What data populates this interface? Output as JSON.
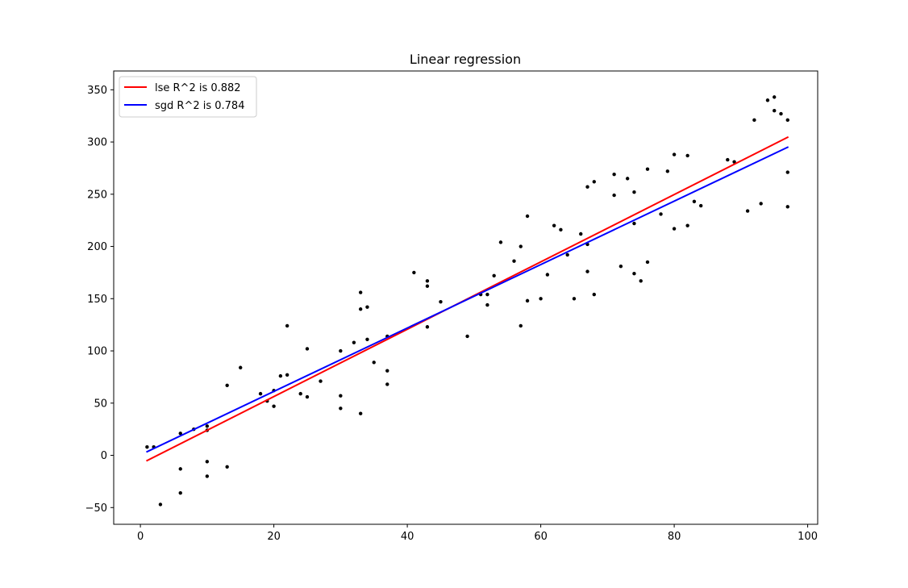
{
  "chart_data": {
    "type": "scatter",
    "title": "Linear regression",
    "xlabel": "",
    "ylabel": "",
    "xlim": [
      -4,
      101.5
    ],
    "ylim": [
      -66,
      368
    ],
    "xticks": [
      0,
      20,
      40,
      60,
      80,
      100
    ],
    "yticks": [
      -50,
      0,
      50,
      100,
      150,
      200,
      250,
      300,
      350
    ],
    "grid": false,
    "legend_position": "top-left",
    "points": {
      "name": "",
      "color": "#000000",
      "x": [
        1,
        2,
        3,
        6,
        6,
        6,
        8,
        10,
        10,
        10,
        10,
        13,
        13,
        15,
        18,
        19,
        20,
        20,
        21,
        22,
        22,
        24,
        25,
        25,
        27,
        30,
        30,
        30,
        32,
        33,
        33,
        33,
        34,
        34,
        35,
        37,
        37,
        37,
        41,
        43,
        43,
        43,
        45,
        49,
        51,
        52,
        52,
        53,
        54,
        56,
        57,
        57,
        58,
        58,
        60,
        61,
        62,
        63,
        64,
        65,
        66,
        67,
        67,
        67,
        68,
        68,
        71,
        71,
        72,
        73,
        74,
        74,
        74,
        75,
        76,
        76,
        78,
        79,
        80,
        80,
        82,
        82,
        83,
        84,
        88,
        89,
        91,
        92,
        93,
        94,
        95,
        95,
        96,
        97,
        97,
        97
      ],
      "y": [
        8,
        8,
        -47,
        21,
        -13,
        -36,
        25,
        28,
        24,
        -6,
        -20,
        67,
        -11,
        84,
        59,
        52,
        62,
        47,
        76,
        124,
        77,
        59,
        102,
        56,
        71,
        100,
        57,
        45,
        108,
        156,
        140,
        40,
        111,
        142,
        89,
        114,
        81,
        68,
        175,
        167,
        162,
        123,
        147,
        114,
        154,
        154,
        144,
        172,
        204,
        186,
        200,
        124,
        229,
        148,
        150,
        173,
        220,
        216,
        192,
        150,
        212,
        202,
        257,
        176,
        262,
        154,
        269,
        249,
        181,
        265,
        252,
        222,
        174,
        167,
        274,
        185,
        231,
        272,
        288,
        217,
        287,
        220,
        243,
        239,
        283,
        281,
        234,
        321,
        241,
        340,
        343,
        330,
        327,
        321,
        271,
        238
      ]
    },
    "series": [
      {
        "name": "lse R^2 is 0.882",
        "color": "#ff0000",
        "x": [
          1,
          97
        ],
        "y": [
          -5,
          304.5
        ]
      },
      {
        "name": "sgd R^2 is 0.784",
        "color": "#0000ff",
        "x": [
          1,
          97
        ],
        "y": [
          3.5,
          295
        ]
      }
    ]
  }
}
